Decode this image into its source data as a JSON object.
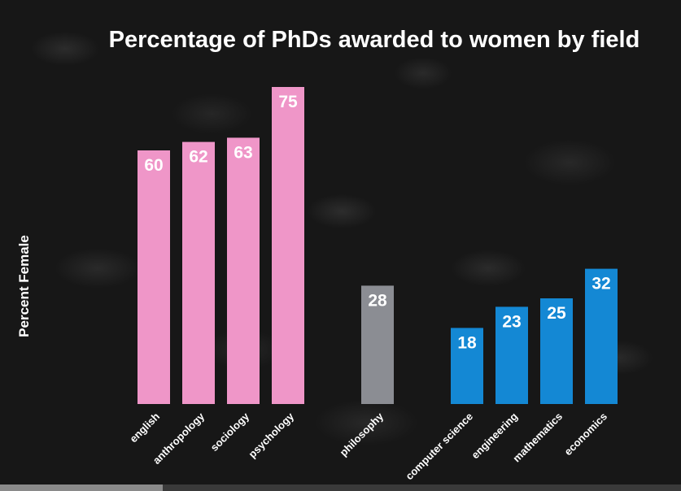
{
  "chart_data": {
    "type": "bar",
    "title": "Percentage of PhDs awarded to women by field",
    "ylabel": "Percent Female",
    "xlabel": "",
    "ylim": [
      0,
      80
    ],
    "grid": false,
    "categories": [
      "english",
      "anthropology",
      "sociology",
      "psychology",
      "philosophy",
      "computer science",
      "engineering",
      "mathematics",
      "economics"
    ],
    "values": [
      60,
      62,
      63,
      75,
      28,
      18,
      23,
      25,
      32
    ],
    "groups": [
      {
        "members": [
          "english",
          "anthropology",
          "sociology",
          "psychology"
        ],
        "color": "#ef96c8"
      },
      {
        "members": [
          "philosophy"
        ],
        "color": "#8b8d93"
      },
      {
        "members": [
          "computer science",
          "engineering",
          "mathematics",
          "economics"
        ],
        "color": "#1488d4"
      }
    ],
    "text_color": "#ffffff",
    "background_color": "#161616"
  }
}
